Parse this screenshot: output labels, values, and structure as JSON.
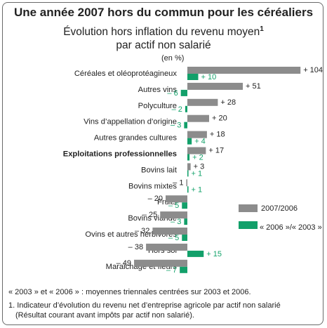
{
  "title": "Une année 2007 hors du commun pour les céréaliers",
  "subtitle_line1": "Évolution hors inflation du revenu moyen",
  "subtitle_sup": "1",
  "subtitle_line2": "par actif non salarié",
  "unit": "(en %)",
  "colors": {
    "series_2007_2006": "#8c8c8c",
    "series_2006_2003": "#12a06a"
  },
  "chart_data": {
    "type": "bar",
    "orientation": "horizontal",
    "categories": [
      "Céréales et oléoprotéagineux",
      "Autres vins",
      "Polyculture",
      "Vins d’appellation d’origine",
      "Autres grandes cultures",
      "Exploitations professionnelles",
      "Bovins lait",
      "Bovins mixtes",
      "Fruits",
      "Bovins viande",
      "Ovins et autres herbivores",
      "Hors sol",
      "Maraichage et fleurs"
    ],
    "series": [
      {
        "name": "2007/2006",
        "values": [
          104,
          51,
          28,
          20,
          18,
          17,
          3,
          -1,
          -20,
          -25,
          -32,
          -38,
          -49
        ]
      },
      {
        "name": "« 2006 »/« 2003 »",
        "values": [
          10,
          -6,
          -2,
          -3,
          4,
          2,
          1,
          1,
          -5,
          -3,
          -5,
          15,
          -7
        ]
      }
    ],
    "value_labels": [
      [
        "+ 104",
        "+ 10"
      ],
      [
        "+ 51",
        "– 6"
      ],
      [
        "+ 28",
        "– 2"
      ],
      [
        "+ 20",
        "– 3"
      ],
      [
        "+ 18",
        "+ 4"
      ],
      [
        "+ 17",
        "+ 2"
      ],
      [
        "+ 3",
        "+ 1"
      ],
      [
        "– 1",
        "+ 1"
      ],
      [
        "– 20",
        "– 5"
      ],
      [
        "– 25",
        "– 3"
      ],
      [
        "– 32",
        "– 5"
      ],
      [
        "– 38",
        "+ 15"
      ],
      [
        "– 49",
        "– 7"
      ]
    ],
    "bold_category": "Exploitations professionnelles",
    "legend_placement": "right",
    "grid": false,
    "xlim": [
      -49,
      104
    ]
  },
  "notes": [
    "« 2003 » et « 2006 » : moyennes triennales centrées sur 2003 et 2006.",
    "1. Indicateur d’évolution du revenu net d’entreprise agricole par actif non salarié",
    "(Résultat courant avant impôts par actif non salarié)."
  ]
}
